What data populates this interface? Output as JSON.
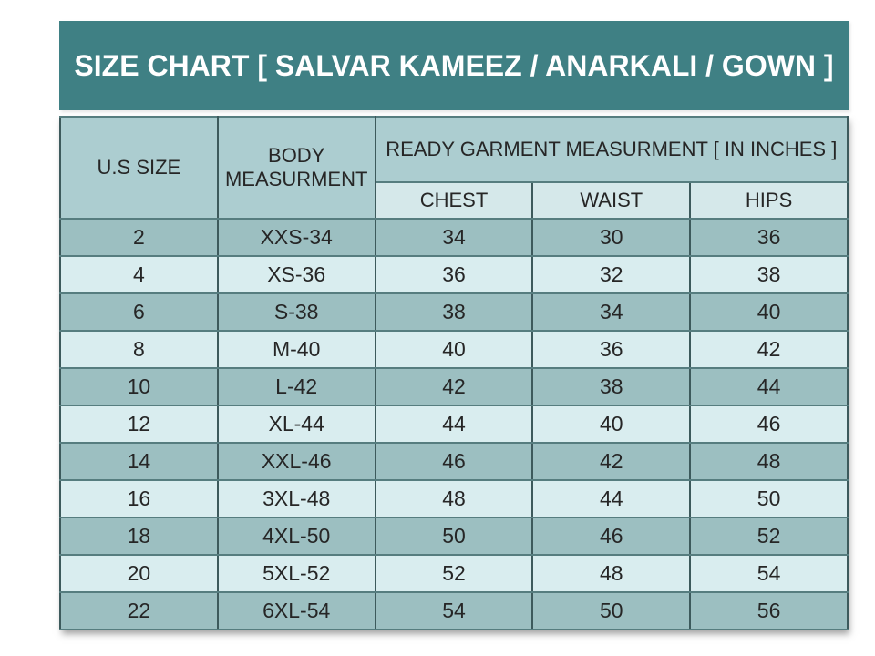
{
  "title": "SIZE CHART [ SALVAR KAMEEZ / ANARKALI / GOWN ]",
  "header": {
    "us_size": "U.S SIZE",
    "body_measurement": "BODY MEASURMENT",
    "ready_garment": "READY GARMENT MEASURMENT [ IN INCHES ]",
    "chest": "CHEST",
    "waist": "WAIST",
    "hips": "HIPS"
  },
  "rows": [
    [
      "2",
      "XXS-34",
      "34",
      "30",
      "36"
    ],
    [
      "4",
      "XS-36",
      "36",
      "32",
      "38"
    ],
    [
      "6",
      "S-38",
      "38",
      "34",
      "40"
    ],
    [
      "8",
      "M-40",
      "40",
      "36",
      "42"
    ],
    [
      "10",
      "L-42",
      "42",
      "38",
      "44"
    ],
    [
      "12",
      "XL-44",
      "44",
      "40",
      "46"
    ],
    [
      "14",
      "XXL-46",
      "46",
      "42",
      "48"
    ],
    [
      "16",
      "3XL-48",
      "48",
      "44",
      "50"
    ],
    [
      "18",
      "4XL-50",
      "50",
      "46",
      "52"
    ],
    [
      "20",
      "5XL-52",
      "52",
      "48",
      "54"
    ],
    [
      "22",
      "6XL-54",
      "54",
      "50",
      "56"
    ]
  ],
  "colors": {
    "banner_bg": "#3f8084",
    "banner_text": "#ffffff",
    "header_bg": "#accdd0",
    "subheader_bg": "#d5e8ea",
    "row_dark_bg": "#9cbfc1",
    "row_light_bg": "#d9edef",
    "grid_vertical": "#3d5a5c",
    "grid_horizontal": "#567d7f",
    "text": "#262626"
  },
  "chart_data": {
    "type": "table",
    "title": "SIZE CHART [ SALVAR KAMEEZ / ANARKALI / GOWN ]",
    "columns": [
      "U.S SIZE",
      "BODY MEASURMENT",
      "CHEST",
      "WAIST",
      "HIPS"
    ],
    "column_group": "READY GARMENT MEASURMENT [ IN INCHES ]",
    "column_group_applies_to": [
      "CHEST",
      "WAIST",
      "HIPS"
    ],
    "rows": [
      [
        "2",
        "XXS-34",
        "34",
        "30",
        "36"
      ],
      [
        "4",
        "XS-36",
        "36",
        "32",
        "38"
      ],
      [
        "6",
        "S-38",
        "38",
        "34",
        "40"
      ],
      [
        "8",
        "M-40",
        "40",
        "36",
        "42"
      ],
      [
        "10",
        "L-42",
        "42",
        "38",
        "44"
      ],
      [
        "12",
        "XL-44",
        "44",
        "40",
        "46"
      ],
      [
        "14",
        "XXL-46",
        "46",
        "42",
        "48"
      ],
      [
        "16",
        "3XL-48",
        "48",
        "44",
        "50"
      ],
      [
        "18",
        "4XL-50",
        "50",
        "46",
        "52"
      ],
      [
        "20",
        "5XL-52",
        "52",
        "48",
        "54"
      ],
      [
        "22",
        "6XL-54",
        "54",
        "50",
        "56"
      ]
    ]
  }
}
